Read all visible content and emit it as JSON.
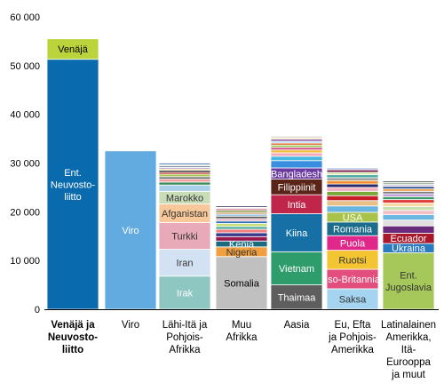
{
  "chart_data": {
    "type": "bar",
    "stacked": true,
    "title": "",
    "xlabel": "",
    "ylabel": "",
    "ylim": [
      0,
      60000
    ],
    "yticks": [
      0,
      10000,
      20000,
      30000,
      40000,
      50000,
      60000
    ],
    "ytick_labels": [
      "0",
      "10 000",
      "20 000",
      "30 000",
      "40 000",
      "50 000",
      "60 000"
    ],
    "grid": false,
    "legend": "none",
    "categories": [
      {
        "label": "Venäjä ja Neuvosto-liitto",
        "lines": [
          "Venäjä ja",
          "Neuvosto-",
          "liitto"
        ],
        "bold": true
      },
      {
        "label": "Viro",
        "lines": [
          "Viro"
        ],
        "bold": false
      },
      {
        "label": "Lähi-Itä ja Pohjois-Afrikka",
        "lines": [
          "Lähi-Itä ja",
          "Pohjois-",
          "Afrikka"
        ],
        "bold": false
      },
      {
        "label": "Muu Afrikka",
        "lines": [
          "Muu",
          "Afrikka"
        ],
        "bold": false
      },
      {
        "label": "Aasia",
        "lines": [
          "Aasia"
        ],
        "bold": false
      },
      {
        "label": "Eu, Efta ja Pohjois-Amerikka",
        "lines": [
          "Eu, Efta",
          "ja Pohjois-",
          "Amerikka"
        ],
        "bold": false
      },
      {
        "label": "Latinalainen Amerikka, Itä-Eurooppa ja muut",
        "lines": [
          "Latinalainen",
          "Amerikka,",
          "Itä-",
          "Eurooppa",
          "ja muut"
        ],
        "bold": false
      }
    ],
    "stacks": [
      {
        "category": "Venäjä ja Neuvosto-liitto",
        "segments": [
          {
            "name": "Ent. Neuvosto-liitto",
            "value": 51300,
            "color": "#0a6aae",
            "text_color": "#ffffff",
            "label_lines": [
              "Ent.",
              "Neuvosto-",
              "liitto"
            ]
          },
          {
            "name": "Venäjä",
            "value": 4200,
            "color": "#bcd43c",
            "text_color": "#000000",
            "label_lines": [
              "Venäjä"
            ]
          }
        ]
      },
      {
        "category": "Viro",
        "segments": [
          {
            "name": "Viro",
            "value": 32500,
            "color": "#62abe1",
            "text_color": "#ffffff",
            "label_lines": [
              "Viro"
            ]
          }
        ]
      },
      {
        "category": "Lähi-Itä ja Pohjois-Afrikka",
        "segments": [
          {
            "name": "Irak",
            "value": 6800,
            "color": "#8ec6c2",
            "text_color": "#ffffff",
            "label_lines": [
              "Irak"
            ]
          },
          {
            "name": "Iran",
            "value": 5500,
            "color": "#d2e2f2",
            "text_color": "#333333",
            "label_lines": [
              "Iran"
            ]
          },
          {
            "name": "Turkki",
            "value": 5500,
            "color": "#e8aab8",
            "text_color": "#333333",
            "label_lines": [
              "Turkki"
            ]
          },
          {
            "name": "Afganistan",
            "value": 3800,
            "color": "#f8c89a",
            "text_color": "#333333",
            "label_lines": [
              "Afganistan"
            ]
          },
          {
            "name": "Marokko",
            "value": 2600,
            "color": "#c8dcb8",
            "text_color": "#333333",
            "label_lines": [
              "Marokko"
            ]
          },
          {
            "name": "",
            "value": 1300,
            "color": "#a9cfe9",
            "text_color": "#333333",
            "label_lines": []
          },
          {
            "name": "",
            "value": 600,
            "color": "#3c8c5c",
            "text_color": "#ffffff",
            "label_lines": []
          },
          {
            "name": "",
            "value": 600,
            "color": "#f4a0a0",
            "text_color": "#ffffff",
            "label_lines": []
          },
          {
            "name": "",
            "value": 500,
            "color": "#6f6f6f",
            "text_color": "#ffffff",
            "label_lines": []
          },
          {
            "name": "",
            "value": 500,
            "color": "#a8c850",
            "text_color": "#ffffff",
            "label_lines": []
          },
          {
            "name": "",
            "value": 400,
            "color": "#c23a3a",
            "text_color": "#ffffff",
            "label_lines": []
          },
          {
            "name": "",
            "value": 400,
            "color": "#1a1a1a",
            "text_color": "#ffffff",
            "label_lines": []
          },
          {
            "name": "",
            "value": 300,
            "color": "#f4d890",
            "text_color": "#ffffff",
            "label_lines": []
          },
          {
            "name": "",
            "value": 300,
            "color": "#a090c8",
            "text_color": "#ffffff",
            "label_lines": []
          },
          {
            "name": "",
            "value": 300,
            "color": "#506070",
            "text_color": "#ffffff",
            "label_lines": []
          },
          {
            "name": "",
            "value": 300,
            "color": "#e0e0e0",
            "text_color": "#ffffff",
            "label_lines": []
          },
          {
            "name": "",
            "value": 300,
            "color": "#2c6aa8",
            "text_color": "#ffffff",
            "label_lines": []
          }
        ]
      },
      {
        "category": "Muu Afrikka",
        "segments": [
          {
            "name": "Somalia",
            "value": 10800,
            "color": "#c0c0c0",
            "text_color": "#000000",
            "label_lines": [
              "Somalia"
            ]
          },
          {
            "name": "Nigeria",
            "value": 2000,
            "color": "#f0a040",
            "text_color": "#333333",
            "label_lines": [
              "Nigeria"
            ]
          },
          {
            "name": "Kenia",
            "value": 1200,
            "color": "#1a6a80",
            "text_color": "#ffffff",
            "label_lines": [
              "Kenia"
            ]
          },
          {
            "name": "",
            "value": 900,
            "color": "#9a1850",
            "text_color": "#ffffff",
            "label_lines": []
          },
          {
            "name": "",
            "value": 800,
            "color": "#3a3a8a",
            "text_color": "#ffffff",
            "label_lines": []
          },
          {
            "name": "",
            "value": 700,
            "color": "#f08080",
            "text_color": "#ffffff",
            "label_lines": []
          },
          {
            "name": "",
            "value": 600,
            "color": "#58b0a0",
            "text_color": "#ffffff",
            "label_lines": []
          },
          {
            "name": "",
            "value": 600,
            "color": "#c8dc78",
            "text_color": "#ffffff",
            "label_lines": []
          },
          {
            "name": "",
            "value": 500,
            "color": "#3070b0",
            "text_color": "#ffffff",
            "label_lines": []
          },
          {
            "name": "",
            "value": 500,
            "color": "#e4b0c4",
            "text_color": "#ffffff",
            "label_lines": []
          },
          {
            "name": "",
            "value": 500,
            "color": "#5a5a5a",
            "text_color": "#ffffff",
            "label_lines": []
          },
          {
            "name": "",
            "value": 400,
            "color": "#90c0e0",
            "text_color": "#ffffff",
            "label_lines": []
          },
          {
            "name": "",
            "value": 400,
            "color": "#d0a070",
            "text_color": "#ffffff",
            "label_lines": []
          },
          {
            "name": "",
            "value": 400,
            "color": "#7a9a40",
            "text_color": "#ffffff",
            "label_lines": []
          },
          {
            "name": "",
            "value": 300,
            "color": "#c04060",
            "text_color": "#ffffff",
            "label_lines": []
          },
          {
            "name": "",
            "value": 300,
            "color": "#e8e8e8",
            "text_color": "#ffffff",
            "label_lines": []
          },
          {
            "name": "",
            "value": 300,
            "color": "#404060",
            "text_color": "#ffffff",
            "label_lines": []
          }
        ]
      },
      {
        "category": "Aasia",
        "segments": [
          {
            "name": "Thaimaa",
            "value": 5000,
            "color": "#5e5e5e",
            "text_color": "#ffffff",
            "label_lines": [
              "Thaimaa"
            ]
          },
          {
            "name": "Vietnam",
            "value": 6800,
            "color": "#2f9d6b",
            "text_color": "#ffffff",
            "label_lines": [
              "Vietnam"
            ]
          },
          {
            "name": "Kiina",
            "value": 7800,
            "color": "#1670a5",
            "text_color": "#ffffff",
            "label_lines": [
              "Kiina"
            ]
          },
          {
            "name": "Intia",
            "value": 3900,
            "color": "#c0254a",
            "text_color": "#ffffff",
            "label_lines": [
              "Intia"
            ]
          },
          {
            "name": "Filippiinit",
            "value": 3200,
            "color": "#5a2418",
            "text_color": "#ffffff",
            "label_lines": [
              "Filippiinit"
            ]
          },
          {
            "name": "Bangladesh",
            "value": 2300,
            "color": "#6a3aa0",
            "text_color": "#ffffff",
            "label_lines": [
              "Bangladesh"
            ]
          },
          {
            "name": "",
            "value": 1500,
            "color": "#3a8ee0",
            "text_color": "#ffffff",
            "label_lines": []
          },
          {
            "name": "",
            "value": 900,
            "color": "#46b8e0",
            "text_color": "#ffffff",
            "label_lines": []
          },
          {
            "name": "",
            "value": 700,
            "color": "#f4a8b8",
            "text_color": "#ffffff",
            "label_lines": []
          },
          {
            "name": "",
            "value": 600,
            "color": "#f0c040",
            "text_color": "#ffffff",
            "label_lines": []
          },
          {
            "name": "",
            "value": 500,
            "color": "#d04080",
            "text_color": "#ffffff",
            "label_lines": []
          },
          {
            "name": "",
            "value": 500,
            "color": "#9acb60",
            "text_color": "#ffffff",
            "label_lines": []
          },
          {
            "name": "",
            "value": 400,
            "color": "#e06020",
            "text_color": "#ffffff",
            "label_lines": []
          },
          {
            "name": "",
            "value": 400,
            "color": "#b0d8f0",
            "text_color": "#ffffff",
            "label_lines": []
          },
          {
            "name": "",
            "value": 400,
            "color": "#80409a",
            "text_color": "#ffffff",
            "label_lines": []
          },
          {
            "name": "",
            "value": 300,
            "color": "#f8e0a0",
            "text_color": "#ffffff",
            "label_lines": []
          },
          {
            "name": "",
            "value": 300,
            "color": "#c8c8c8",
            "text_color": "#ffffff",
            "label_lines": []
          }
        ]
      },
      {
        "category": "Eu, Efta ja Pohjois-Amerikka",
        "segments": [
          {
            "name": "Saksa",
            "value": 4200,
            "color": "#a4d4f0",
            "text_color": "#333333",
            "label_lines": [
              "Saksa"
            ]
          },
          {
            "name": "Iso-Britannia",
            "value": 4000,
            "color": "#e24e7e",
            "text_color": "#ffffff",
            "label_lines": [
              "Iso-Britannia"
            ]
          },
          {
            "name": "Ruotsi",
            "value": 3900,
            "color": "#f4c532",
            "text_color": "#333333",
            "label_lines": [
              "Ruotsi"
            ]
          },
          {
            "name": "Puola",
            "value": 3000,
            "color": "#e0288a",
            "text_color": "#ffffff",
            "label_lines": [
              "Puola"
            ]
          },
          {
            "name": "Romania",
            "value": 2800,
            "color": "#1e6c8c",
            "text_color": "#ffffff",
            "label_lines": [
              "Romania"
            ]
          },
          {
            "name": "USA",
            "value": 2000,
            "color": "#a9c24a",
            "text_color": "#ffffff",
            "label_lines": [
              "USA"
            ]
          },
          {
            "name": "",
            "value": 1300,
            "color": "#6ab4e0",
            "text_color": "#ffffff",
            "label_lines": []
          },
          {
            "name": "",
            "value": 1100,
            "color": "#e8c088",
            "text_color": "#ffffff",
            "label_lines": []
          },
          {
            "name": "",
            "value": 1000,
            "color": "#c81e2a",
            "text_color": "#ffffff",
            "label_lines": []
          },
          {
            "name": "",
            "value": 900,
            "color": "#78a838",
            "text_color": "#ffffff",
            "label_lines": []
          },
          {
            "name": "",
            "value": 800,
            "color": "#f4b0c0",
            "text_color": "#ffffff",
            "label_lines": []
          },
          {
            "name": "",
            "value": 700,
            "color": "#2a2a6a",
            "text_color": "#ffffff",
            "label_lines": []
          },
          {
            "name": "",
            "value": 700,
            "color": "#f09030",
            "text_color": "#ffffff",
            "label_lines": []
          },
          {
            "name": "",
            "value": 600,
            "color": "#9a9a9a",
            "text_color": "#ffffff",
            "label_lines": []
          },
          {
            "name": "",
            "value": 600,
            "color": "#4aa8a0",
            "text_color": "#ffffff",
            "label_lines": []
          },
          {
            "name": "",
            "value": 500,
            "color": "#d8e8a8",
            "text_color": "#ffffff",
            "label_lines": []
          },
          {
            "name": "",
            "value": 500,
            "color": "#7a1a4a",
            "text_color": "#ffffff",
            "label_lines": []
          },
          {
            "name": "",
            "value": 400,
            "color": "#b0c0e0",
            "text_color": "#ffffff",
            "label_lines": []
          }
        ]
      },
      {
        "category": "Latinalainen Amerikka, Itä-Eurooppa ja muut",
        "segments": [
          {
            "name": "Ent. Jugoslavia",
            "value": 11600,
            "color": "#a6c85a",
            "text_color": "#333333",
            "label_lines": [
              "Ent.",
              "Jugoslavia"
            ]
          },
          {
            "name": "Ukraina",
            "value": 1900,
            "color": "#2a7ac0",
            "text_color": "#ffffff",
            "label_lines": [
              "Ukraina"
            ]
          },
          {
            "name": "Ecuador",
            "value": 2100,
            "color": "#a8182a",
            "text_color": "#ffffff",
            "label_lines": [
              "Ecuador"
            ]
          },
          {
            "name": "",
            "value": 1500,
            "color": "#6a2a7a",
            "text_color": "#ffffff",
            "label_lines": []
          },
          {
            "name": "",
            "value": 1200,
            "color": "#e0e0e0",
            "text_color": "#ffffff",
            "label_lines": []
          },
          {
            "name": "",
            "value": 1100,
            "color": "#6ab8e0",
            "text_color": "#ffffff",
            "label_lines": []
          },
          {
            "name": "",
            "value": 900,
            "color": "#f4c0c8",
            "text_color": "#ffffff",
            "label_lines": []
          },
          {
            "name": "",
            "value": 800,
            "color": "#c8e0b0",
            "text_color": "#ffffff",
            "label_lines": []
          },
          {
            "name": "",
            "value": 700,
            "color": "#f8d8a0",
            "text_color": "#ffffff",
            "label_lines": []
          },
          {
            "name": "",
            "value": 700,
            "color": "#e04040",
            "text_color": "#ffffff",
            "label_lines": []
          },
          {
            "name": "",
            "value": 600,
            "color": "#3a9a6a",
            "text_color": "#ffffff",
            "label_lines": []
          },
          {
            "name": "",
            "value": 600,
            "color": "#c0a0d8",
            "text_color": "#ffffff",
            "label_lines": []
          },
          {
            "name": "",
            "value": 500,
            "color": "#7a7a7a",
            "text_color": "#ffffff",
            "label_lines": []
          },
          {
            "name": "",
            "value": 500,
            "color": "#f0a050",
            "text_color": "#ffffff",
            "label_lines": []
          },
          {
            "name": "",
            "value": 500,
            "color": "#2a4a8a",
            "text_color": "#ffffff",
            "label_lines": []
          },
          {
            "name": "",
            "value": 400,
            "color": "#d8c8e8",
            "text_color": "#ffffff",
            "label_lines": []
          },
          {
            "name": "",
            "value": 400,
            "color": "#a0c0a0",
            "text_color": "#ffffff",
            "label_lines": []
          },
          {
            "name": "",
            "value": 300,
            "color": "#4a4a4a",
            "text_color": "#ffffff",
            "label_lines": []
          }
        ]
      }
    ]
  }
}
